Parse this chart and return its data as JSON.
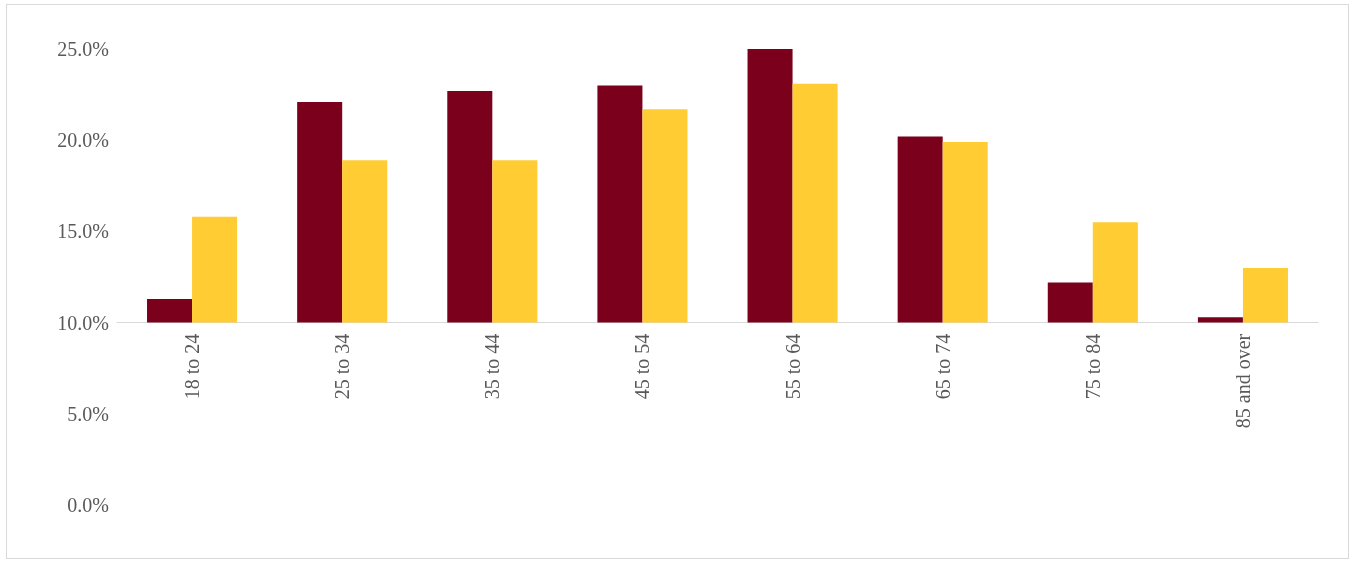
{
  "chart_data": {
    "type": "bar",
    "categories": [
      "18 to 24",
      "25 to 34",
      "35 to 44",
      "45 to 54",
      "55 to 64",
      "65 to 74",
      "75 to 84",
      "85 and over"
    ],
    "series": [
      {
        "color": "#7b001c",
        "base": [
          10,
          10,
          10,
          10,
          10,
          10,
          10,
          10
        ],
        "values": [
          1.3,
          12.1,
          12.7,
          13.0,
          15.0,
          10.2,
          2.2,
          0.3
        ]
      },
      {
        "color": "#ffcc33",
        "base": [
          10,
          10,
          10,
          10,
          10,
          10,
          10,
          10
        ],
        "values": [
          5.8,
          8.9,
          8.9,
          11.7,
          13.1,
          9.9,
          5.5,
          3.0
        ]
      }
    ],
    "ylim": [
      0,
      25
    ],
    "yticks": [
      {
        "value": 0,
        "label": "0.0%"
      },
      {
        "value": 5,
        "label": "5.0%"
      },
      {
        "value": 10,
        "label": "10.0%"
      },
      {
        "value": 15,
        "label": "15.0%"
      },
      {
        "value": 20,
        "label": "20.0%"
      },
      {
        "value": 25,
        "label": "25.0%"
      }
    ],
    "grid": false
  }
}
